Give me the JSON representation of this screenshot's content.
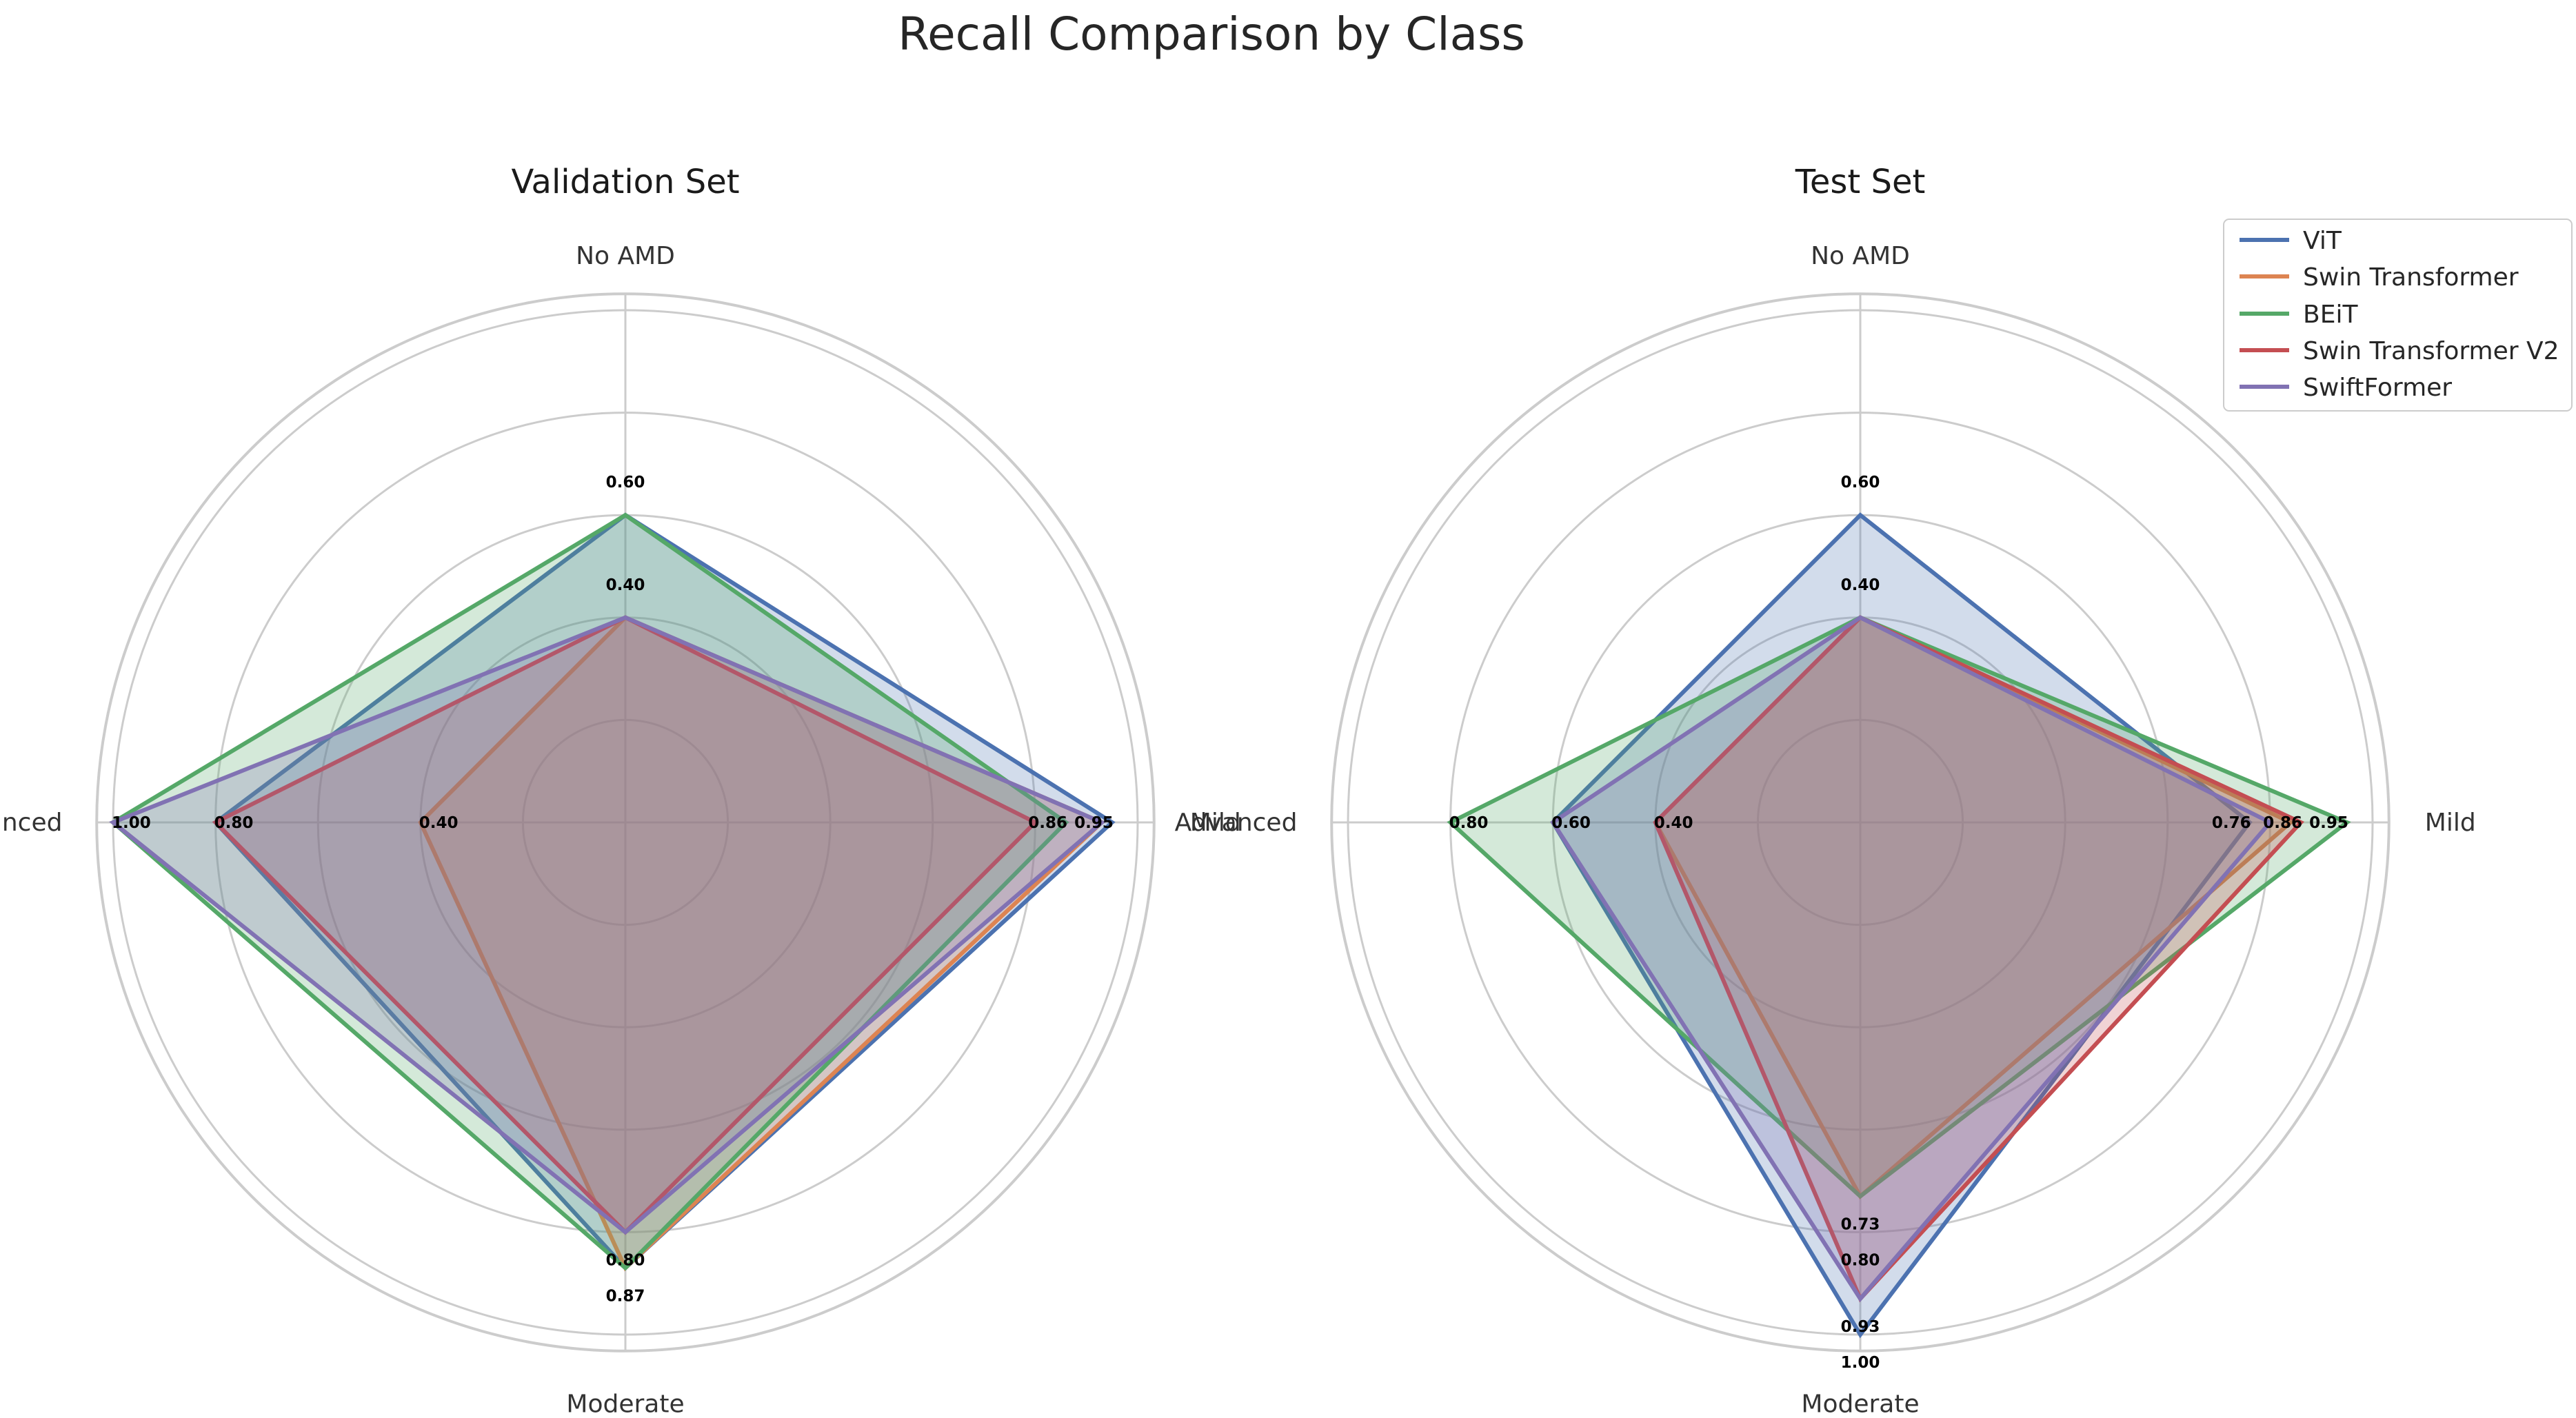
{
  "title": "Recall Comparison by Class",
  "colors": {
    "ViT": "#4c72b0",
    "Swin Transformer": "#dd8452",
    "BEiT": "#55a868",
    "Swin Transformer V2": "#c44e52",
    "SwiftFormer": "#8172b3",
    "grid": "#cccccc",
    "text": "#262626"
  },
  "legend": {
    "items": [
      "ViT",
      "Swin Transformer",
      "BEiT",
      "Swin Transformer V2",
      "SwiftFormer"
    ],
    "location": "upper right"
  },
  "chart_data": [
    {
      "type": "radar",
      "title": "Validation Set",
      "axes": [
        "No AMD",
        "Mild",
        "Moderate",
        "Advanced"
      ],
      "rlim": [
        0,
        1.0
      ],
      "grid": true,
      "series": [
        {
          "name": "ViT",
          "values": [
            0.6,
            0.95,
            0.87,
            0.8
          ]
        },
        {
          "name": "Swin Transformer",
          "values": [
            0.4,
            0.93,
            0.87,
            0.4
          ]
        },
        {
          "name": "BEiT",
          "values": [
            0.6,
            0.86,
            0.87,
            1.0
          ]
        },
        {
          "name": "Swin Transformer V2",
          "values": [
            0.4,
            0.8,
            0.8,
            0.8
          ]
        },
        {
          "name": "SwiftFormer",
          "values": [
            0.4,
            0.93,
            0.8,
            1.0
          ]
        }
      ],
      "annotations": [
        {
          "axis": 0,
          "values": [
            "0.40",
            "0.60"
          ]
        },
        {
          "axis": 1,
          "values": [
            "0.86",
            "0.95"
          ]
        },
        {
          "axis": 2,
          "values": [
            "0.80",
            "0.87"
          ]
        },
        {
          "axis": 3,
          "values": [
            "0.40",
            "0.80",
            "1.00"
          ]
        }
      ]
    },
    {
      "type": "radar",
      "title": "Test Set",
      "axes": [
        "No AMD",
        "Mild",
        "Moderate",
        "Advanced"
      ],
      "rlim": [
        0,
        1.0
      ],
      "grid": true,
      "series": [
        {
          "name": "ViT",
          "values": [
            0.6,
            0.76,
            1.0,
            0.6
          ]
        },
        {
          "name": "Swin Transformer",
          "values": [
            0.4,
            0.84,
            0.73,
            0.4
          ]
        },
        {
          "name": "BEiT",
          "values": [
            0.4,
            0.95,
            0.73,
            0.8
          ]
        },
        {
          "name": "Swin Transformer V2",
          "values": [
            0.4,
            0.86,
            0.93,
            0.4
          ]
        },
        {
          "name": "SwiftFormer",
          "values": [
            0.4,
            0.8,
            0.93,
            0.6
          ]
        }
      ],
      "annotations": [
        {
          "axis": 0,
          "values": [
            "0.40",
            "0.60"
          ]
        },
        {
          "axis": 1,
          "values": [
            "0.76",
            "0.86",
            "0.95"
          ]
        },
        {
          "axis": 2,
          "values": [
            "0.73",
            "0.80",
            "0.93",
            "1.00"
          ]
        },
        {
          "axis": 3,
          "values": [
            "0.40",
            "0.60",
            "0.80"
          ]
        }
      ]
    }
  ]
}
